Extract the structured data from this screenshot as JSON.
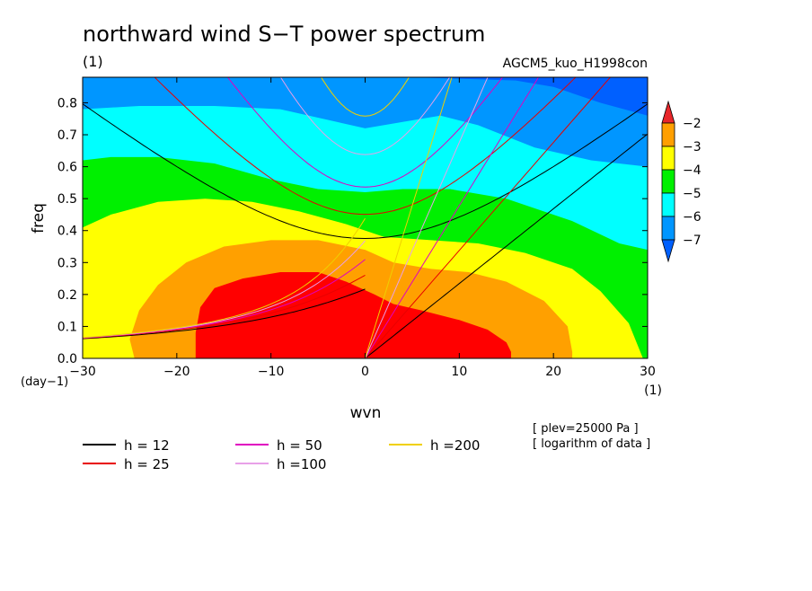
{
  "chart_data": {
    "type": "heatmap",
    "title": "northward wind S−T power spectrum",
    "subtitle_left": "(1)",
    "subtitle_right": "AGCM5_kuo_H1998con",
    "xlabel": "wvn",
    "x_unit": "(1)",
    "ylabel": "freq",
    "y_unit": "(day−1)",
    "xlim": [
      -30,
      30
    ],
    "ylim": [
      0,
      0.88
    ],
    "x_ticks": [
      "−30",
      "−20",
      "−10",
      "0",
      "10",
      "20",
      "30"
    ],
    "y_ticks": [
      "0.0",
      "0.1",
      "0.2",
      "0.3",
      "0.4",
      "0.5",
      "0.6",
      "0.7",
      "0.8"
    ],
    "colorbar": {
      "labels": [
        "−2",
        "−3",
        "−4",
        "−5",
        "−6",
        "−7"
      ],
      "levels": [
        -2,
        -3,
        -4,
        -5,
        -6,
        -7
      ],
      "colors": [
        "#e8262a",
        "#ff9f00",
        "#ffff00",
        "#00f000",
        "#00ffff",
        "#0096ff",
        "#0060ff"
      ]
    },
    "contour_fill": {
      "z_max_at": {
        "x": -5,
        "y": 0.18
      },
      "regions": [
        {
          "level": ">-3",
          "color": "#ff0000"
        },
        {
          "level": "-4..-3",
          "color": "#ffa000"
        },
        {
          "level": "-5..-4",
          "color": "#ffff00"
        },
        {
          "level": "-6..-5",
          "color": "#00f000"
        },
        {
          "level": "-7..-6",
          "color": "#00ffff"
        },
        {
          "level": "<-7",
          "color": "#0096ff"
        }
      ]
    },
    "dispersion_curves": [
      {
        "label": "h = 12",
        "h": 12,
        "color": "#000000"
      },
      {
        "label": "h = 25",
        "h": 25,
        "color": "#e80000"
      },
      {
        "label": "h = 50",
        "h": 50,
        "color": "#e000c0"
      },
      {
        "label": "h =100",
        "h": 100,
        "color": "#e8a0e8"
      },
      {
        "label": "h =200",
        "h": 200,
        "color": "#f0d000"
      }
    ],
    "annotations": [
      "[ plev=25000 Pa ]",
      "[ logarithm of data ]"
    ]
  }
}
